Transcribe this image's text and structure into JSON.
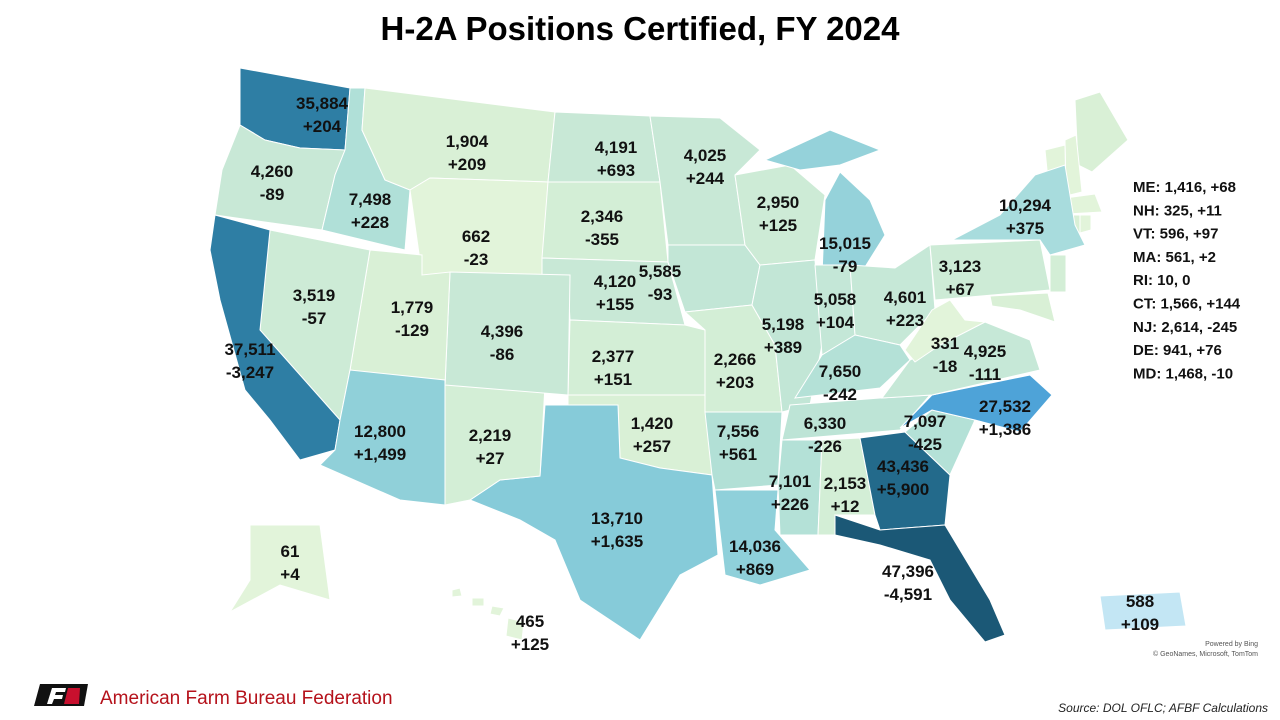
{
  "title": "H-2A Positions Certified, FY 2024",
  "states": [
    {
      "positions": "35,884",
      "change": "+204",
      "color": "#2e7ea4"
    },
    {
      "positions": "4,260",
      "change": "-89",
      "color": "#c8e8d6"
    },
    {
      "positions": "7,498",
      "change": "+228",
      "color": "#b0e0d8"
    },
    {
      "positions": "1,904",
      "change": "+209",
      "color": "#d9f0d6"
    },
    {
      "positions": "662",
      "change": "-23",
      "color": "#e2f4da"
    },
    {
      "positions": "4,191",
      "change": "+693",
      "color": "#c8e8d6"
    },
    {
      "positions": "2,346",
      "change": "-355",
      "color": "#d3eed6"
    },
    {
      "positions": "4,120",
      "change": "+155",
      "color": "#c8e8d6"
    },
    {
      "positions": "2,377",
      "change": "+151",
      "color": "#d3eed6"
    },
    {
      "positions": "1,420",
      "change": "+257",
      "color": "#d9f0d6"
    },
    {
      "positions": "13,710",
      "change": "+1,635",
      "color": "#86cbd9"
    },
    {
      "positions": "2,219",
      "change": "+27",
      "color": "#d3eed6"
    },
    {
      "positions": "4,396",
      "change": "-86",
      "color": "#c8e8d6"
    },
    {
      "positions": "1,779",
      "change": "-129",
      "color": "#d9f0d6"
    },
    {
      "positions": "3,519",
      "change": "-57",
      "color": "#cdebd6"
    },
    {
      "positions": "37,511",
      "change": "-3,247",
      "color": "#2e7ea4"
    },
    {
      "positions": "12,800",
      "change": "+1,499",
      "color": "#90d0d9"
    },
    {
      "positions": "4,025",
      "change": "+244",
      "color": "#c8e8d6"
    },
    {
      "positions": "5,585",
      "change": "-93",
      "color": "#c2e6d6"
    },
    {
      "positions": "2,266",
      "change": "+203",
      "color": "#d3eed6"
    },
    {
      "positions": "7,556",
      "change": "+561",
      "color": "#b2e0d6"
    },
    {
      "positions": "14,036",
      "change": "+869",
      "color": "#8fd0da"
    },
    {
      "positions": "2,950",
      "change": "+125",
      "color": "#cdebd6"
    },
    {
      "positions": "5,198",
      "change": "+389",
      "color": "#c2e6d6"
    },
    {
      "positions": "15,015",
      "change": "-79",
      "color": "#95d2da"
    },
    {
      "positions": "5,058",
      "change": "+104",
      "color": "#c4e7d7"
    },
    {
      "positions": "4,601",
      "change": "+223",
      "color": "#c6e8d7"
    },
    {
      "positions": "7,650",
      "change": "-242",
      "color": "#b4e1d7"
    },
    {
      "positions": "6,330",
      "change": "-226",
      "color": "#bde4d6"
    },
    {
      "positions": "7,101",
      "change": "+226",
      "color": "#b4e1d7"
    },
    {
      "positions": "2,153",
      "change": "+12",
      "color": "#d3eed6"
    },
    {
      "positions": "43,436",
      "change": "+5,900",
      "color": "#236a8b"
    },
    {
      "positions": "47,396",
      "change": "-4,591",
      "color": "#1b5876"
    },
    {
      "positions": "7,097",
      "change": "-425",
      "color": "#b4e1d7"
    },
    {
      "positions": "27,532",
      "change": "+1,386",
      "color": "#4ea3d8"
    },
    {
      "positions": "4,925",
      "change": "-111",
      "color": "#c6e8d7"
    },
    {
      "positions": "331",
      "change": "-18",
      "color": "#e2f4da"
    },
    {
      "positions": "3,123",
      "change": "+67",
      "color": "#cdebd6"
    },
    {
      "positions": "10,294",
      "change": "+375",
      "color": "#a8dcdd"
    },
    {
      "positions": "61",
      "change": "+4",
      "color": "#e2f4da"
    },
    {
      "positions": "465",
      "change": "+125",
      "color": "#e2f4da"
    },
    {
      "positions": "588",
      "change": "+109",
      "color": "#c3e6f4"
    }
  ],
  "sidebar": [
    "ME: 1,416, +68",
    "NH: 325, +11",
    "VT: 596, +97",
    "MA: 561, +2",
    "RI: 10, 0",
    "CT: 1,566, +144",
    "NJ: 2,614, -245",
    "DE: 941, +76",
    "MD: 1,468, -10"
  ],
  "attribution": [
    "Powered by Bing",
    "© GeoNames, Microsoft, TomTom"
  ],
  "logo_text": "American Farm Bureau Federation",
  "source": "Source: DOL OFLC; AFBF Calculations"
}
